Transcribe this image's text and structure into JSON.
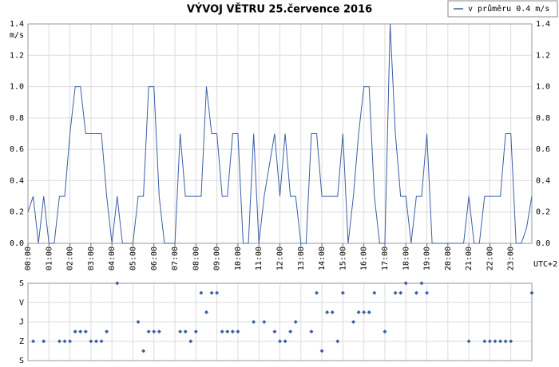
{
  "chart_data": [
    {
      "type": "line",
      "title": "VÝVOJ VĚTRU  25.července 2016",
      "ylabel": "m/s",
      "xlabel": "UTC+2",
      "legend": "top-right",
      "grid": true,
      "xlim": [
        0,
        24
      ],
      "xticks": [
        {
          "value": 0,
          "label": "00:00"
        },
        {
          "value": 1,
          "label": "01:00"
        },
        {
          "value": 2,
          "label": "02:00"
        },
        {
          "value": 3,
          "label": "03:00"
        },
        {
          "value": 4,
          "label": "04:00"
        },
        {
          "value": 5,
          "label": "05:00"
        },
        {
          "value": 6,
          "label": "06:00"
        },
        {
          "value": 7,
          "label": "07:00"
        },
        {
          "value": 8,
          "label": "08:00"
        },
        {
          "value": 9,
          "label": "09:00"
        },
        {
          "value": 10,
          "label": "10:00"
        },
        {
          "value": 11,
          "label": "11:00"
        },
        {
          "value": 12,
          "label": "12:00"
        },
        {
          "value": 13,
          "label": "13:00"
        },
        {
          "value": 14,
          "label": "14:00"
        },
        {
          "value": 15,
          "label": "15:00"
        },
        {
          "value": 16,
          "label": "16:00"
        },
        {
          "value": 17,
          "label": "17:00"
        },
        {
          "value": 18,
          "label": "18:00"
        },
        {
          "value": 19,
          "label": "19:00"
        },
        {
          "value": 20,
          "label": "20:00"
        },
        {
          "value": 21,
          "label": "21:00"
        },
        {
          "value": 22,
          "label": "22:00"
        },
        {
          "value": 23,
          "label": "23:00"
        }
      ],
      "ylim": [
        0,
        1.4
      ],
      "yticks": [
        {
          "value": 0,
          "label": "0.0"
        },
        0.2,
        0.4,
        0.6,
        0.8,
        {
          "value": 1,
          "label": "1.0"
        },
        1.2,
        1.4
      ],
      "x": [
        0,
        0.25,
        0.5,
        0.75,
        1,
        1.25,
        1.5,
        1.75,
        2,
        2.25,
        2.5,
        2.75,
        3,
        3.25,
        3.5,
        3.75,
        4,
        4.25,
        4.5,
        4.75,
        5,
        5.25,
        5.5,
        5.75,
        6,
        6.25,
        6.5,
        6.75,
        7,
        7.25,
        7.5,
        7.75,
        8,
        8.25,
        8.5,
        8.75,
        9,
        9.25,
        9.5,
        9.75,
        10,
        10.25,
        10.5,
        10.75,
        11,
        11.25,
        11.5,
        11.75,
        12,
        12.25,
        12.5,
        12.75,
        13,
        13.25,
        13.5,
        13.75,
        14,
        14.25,
        14.5,
        14.75,
        15,
        15.25,
        15.5,
        15.75,
        16,
        16.25,
        16.5,
        16.75,
        17,
        17.25,
        17.5,
        17.75,
        18,
        18.25,
        18.5,
        18.75,
        19,
        19.25,
        19.5,
        19.75,
        20,
        20.25,
        20.5,
        20.75,
        21,
        21.25,
        21.5,
        21.75,
        22,
        22.25,
        22.5,
        22.75,
        23,
        23.25,
        23.5,
        23.75,
        24
      ],
      "series": [
        {
          "name": "v průměru 0.4 m/s",
          "color": "#3b5fa6",
          "values": [
            0.2,
            0.3,
            0,
            0.3,
            0,
            0,
            0.3,
            0.3,
            0.7,
            1.0,
            1.0,
            0.7,
            0.7,
            0.7,
            0.7,
            0.3,
            0,
            0.3,
            0,
            0,
            0,
            0.3,
            0.3,
            1.0,
            1.0,
            0.3,
            0,
            0,
            0,
            0.7,
            0.3,
            0.3,
            0.3,
            0.3,
            1.0,
            0.7,
            0.7,
            0.3,
            0.3,
            0.7,
            0.7,
            0,
            0,
            0.7,
            0,
            0.3,
            0.5,
            0.7,
            0.3,
            0.7,
            0.3,
            0.3,
            0,
            0,
            0.7,
            0.7,
            0.3,
            0.3,
            0.3,
            0.3,
            0.7,
            0,
            0.3,
            0.7,
            1.0,
            1.0,
            0.3,
            0,
            0,
            1.4,
            0.7,
            0.3,
            0.3,
            0,
            0.3,
            0.3,
            0.7,
            0,
            0,
            0,
            0,
            0,
            0,
            0,
            0.3,
            0,
            0,
            0.3,
            0.3,
            0.3,
            0.3,
            0.7,
            0.7,
            0,
            0,
            0.1,
            0.3
          ]
        }
      ]
    },
    {
      "type": "scatter",
      "color": "#3b5fa6",
      "grid": true,
      "xlim": [
        0,
        24
      ],
      "ylim": [
        360,
        0
      ],
      "yticks": [
        {
          "value": 0,
          "label": "S"
        },
        {
          "value": 90,
          "label": "V"
        },
        {
          "value": 180,
          "label": "J"
        },
        {
          "value": 270,
          "label": "Z"
        },
        {
          "value": 360,
          "label": "S"
        }
      ],
      "x": [
        0.25,
        0.75,
        1.5,
        1.75,
        2,
        2.25,
        2.5,
        2.75,
        3,
        3.25,
        3.5,
        3.75,
        4.25,
        5.25,
        5.5,
        5.75,
        6,
        6.25,
        7.25,
        7.5,
        7.75,
        8,
        8.25,
        8.5,
        8.75,
        9,
        9.25,
        9.5,
        9.75,
        10,
        10.75,
        11.25,
        11.75,
        12,
        12.25,
        12.5,
        12.75,
        13.5,
        13.75,
        14,
        14.25,
        14.5,
        14.75,
        15,
        15.5,
        15.75,
        16,
        16.25,
        16.5,
        17,
        17.5,
        17.75,
        18,
        18.5,
        18.75,
        19,
        21,
        21.75,
        22,
        22.25,
        22.5,
        22.75,
        23,
        24
      ],
      "values": [
        270,
        270,
        270,
        270,
        270,
        225,
        225,
        225,
        270,
        270,
        270,
        225,
        0,
        180,
        315,
        225,
        225,
        225,
        225,
        225,
        270,
        225,
        45,
        135,
        45,
        45,
        225,
        225,
        225,
        225,
        180,
        180,
        225,
        270,
        270,
        225,
        180,
        225,
        45,
        315,
        135,
        135,
        270,
        45,
        180,
        135,
        135,
        135,
        45,
        225,
        45,
        45,
        0,
        45,
        0,
        45,
        270,
        270,
        270,
        270,
        270,
        270,
        270,
        45
      ]
    }
  ]
}
